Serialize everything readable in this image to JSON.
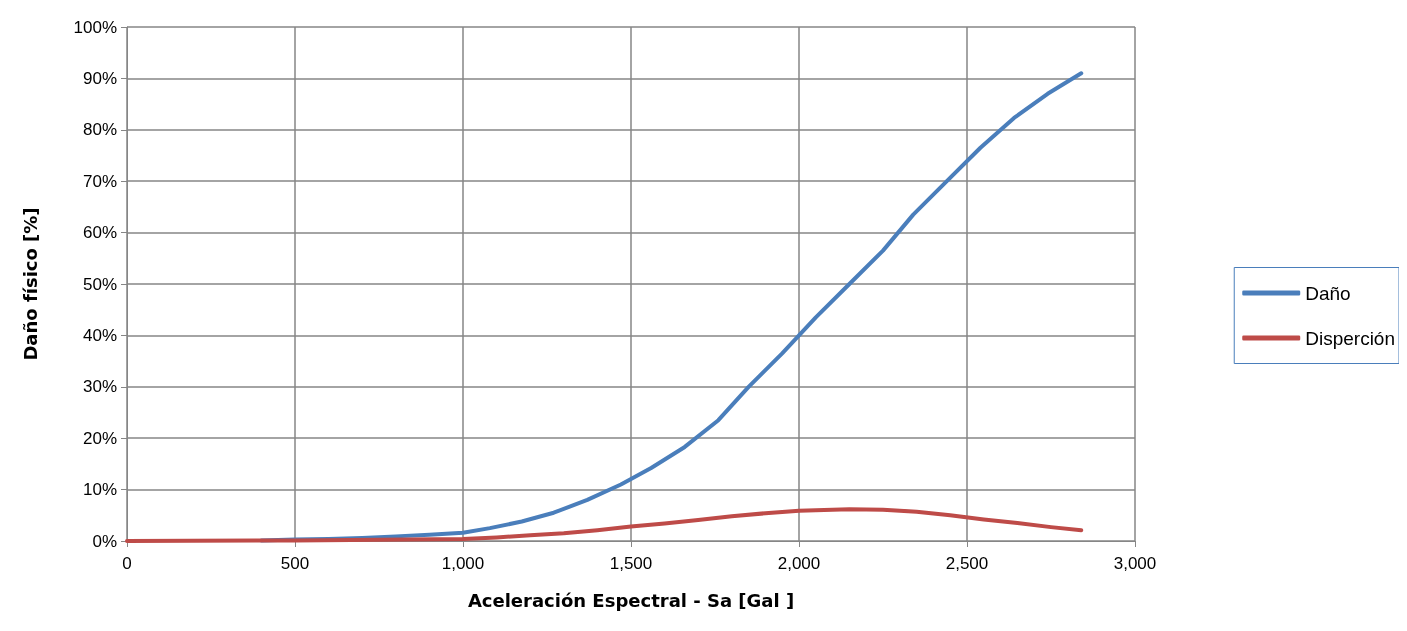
{
  "chart_data": {
    "type": "line",
    "xlabel": "Aceleración Espectral - Sa [Gal ]",
    "ylabel": "Daño físico [%]",
    "xlim": [
      0,
      3000
    ],
    "xticks": [
      {
        "value": 0,
        "label": "0"
      },
      {
        "value": 500,
        "label": "500"
      },
      {
        "value": 1000,
        "label": "1,000"
      },
      {
        "value": 1500,
        "label": "1,500"
      },
      {
        "value": 2000,
        "label": "2,000"
      },
      {
        "value": 2500,
        "label": "2,500"
      },
      {
        "value": 3000,
        "label": "3,000"
      }
    ],
    "ylim": [
      0,
      100
    ],
    "yticks": [
      {
        "value": 0,
        "label": "0%"
      },
      {
        "value": 10,
        "label": "10%"
      },
      {
        "value": 20,
        "label": "20%"
      },
      {
        "value": 30,
        "label": "30%"
      },
      {
        "value": 40,
        "label": "40%"
      },
      {
        "value": 50,
        "label": "50%"
      },
      {
        "value": 60,
        "label": "60%"
      },
      {
        "value": 70,
        "label": "70%"
      },
      {
        "value": 80,
        "label": "80%"
      },
      {
        "value": 90,
        "label": "90%"
      },
      {
        "value": 100,
        "label": "100%"
      }
    ],
    "grid": true,
    "legend": "right",
    "marker": "none",
    "line_style": "solid",
    "series": [
      {
        "name": "Daño",
        "color": "#4a7ebb",
        "x": [
          400,
          500,
          600,
          700,
          800,
          900,
          1000,
          1080,
          1175,
          1270,
          1370,
          1470,
          1560,
          1660,
          1760,
          1850,
          1950,
          2050,
          2150,
          2250,
          2340,
          2440,
          2540,
          2640,
          2740,
          2840
        ],
        "values": [
          0.1,
          0.3,
          0.4,
          0.6,
          0.9,
          1.2,
          1.6,
          2.5,
          3.8,
          5.5,
          8,
          11,
          14.2,
          18.3,
          23.5,
          30,
          36.5,
          43.5,
          50,
          56.5,
          63.5,
          70,
          76.5,
          82.3,
          87,
          91
        ]
      },
      {
        "name": "Disperción",
        "color": "#be4b48",
        "x": [
          0,
          500,
          1000,
          1100,
          1200,
          1300,
          1400,
          1500,
          1600,
          1700,
          1800,
          1900,
          2000,
          2150,
          2250,
          2350,
          2450,
          2550,
          2650,
          2750,
          2840
        ],
        "values": [
          0,
          0.1,
          0.4,
          0.7,
          1.1,
          1.5,
          2.1,
          2.8,
          3.4,
          4.1,
          4.8,
          5.4,
          5.9,
          6.2,
          6.1,
          5.7,
          5,
          4.2,
          3.5,
          2.7,
          2.1
        ]
      }
    ]
  }
}
